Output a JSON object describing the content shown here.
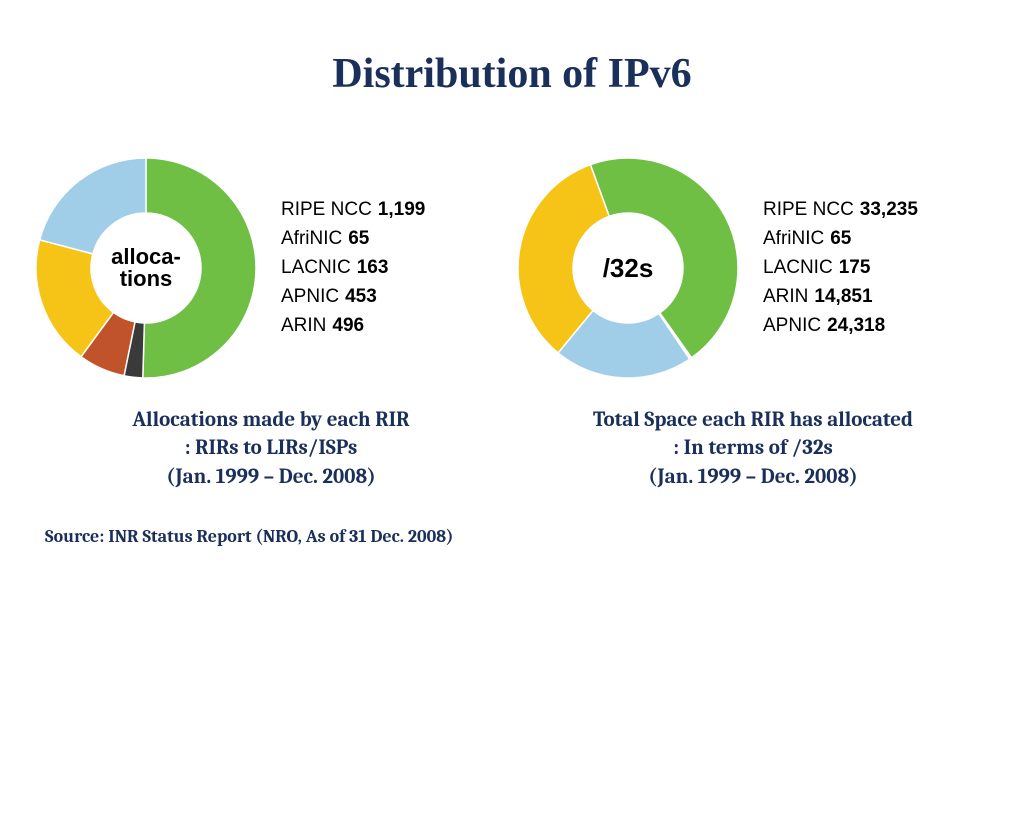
{
  "title": "Distribution of IPv6",
  "title_color": "#1a2f5a",
  "title_fontsize": 42,
  "background_color": "#ffffff",
  "left_chart": {
    "type": "donut",
    "center_label": "alloca-\ntions",
    "center_fontsize": 22,
    "inner_radius": 55,
    "outer_radius": 110,
    "start_angle_deg": 90,
    "direction": "clockwise",
    "stroke_color": "#ffffff",
    "stroke_width": 1.5,
    "slices": [
      {
        "name": "RIPE NCC",
        "value": 1199,
        "value_text": "1,199",
        "color": "#6fbf44"
      },
      {
        "name": "AfriNIC",
        "value": 65,
        "value_text": "65",
        "color": "#3a3a3a"
      },
      {
        "name": "LACNIC",
        "value": 163,
        "value_text": "163",
        "color": "#c0532a"
      },
      {
        "name": "APNIC",
        "value": 453,
        "value_text": "453",
        "color": "#f6c317"
      },
      {
        "name": "ARIN",
        "value": 496,
        "value_text": "496",
        "color": "#a0cde8"
      }
    ],
    "caption_lines": [
      "Allocations made by each RIR",
      ": RIRs to LIRs/ISPs",
      "(Jan. 1999 – Dec. 2008)"
    ]
  },
  "right_chart": {
    "type": "donut",
    "center_label": "/32s",
    "center_fontsize": 26,
    "inner_radius": 55,
    "outer_radius": 110,
    "start_angle_deg": 110,
    "direction": "clockwise",
    "stroke_color": "#ffffff",
    "stroke_width": 1.5,
    "slices": [
      {
        "name": "RIPE NCC",
        "value": 33235,
        "value_text": "33,235",
        "color": "#6fbf44"
      },
      {
        "name": "AfriNIC",
        "value": 65,
        "value_text": "65",
        "color": "#3a3a3a"
      },
      {
        "name": "LACNIC",
        "value": 175,
        "value_text": "175",
        "color": "#a0cde8"
      },
      {
        "name": "ARIN",
        "value": 14851,
        "value_text": "14,851",
        "color": "#a0cde8"
      },
      {
        "name": "APNIC",
        "value": 24318,
        "value_text": "24,318",
        "color": "#f6c317"
      }
    ],
    "caption_lines": [
      "Total Space each RIR has allocated",
      ": In terms of /32s",
      "(Jan. 1999 – Dec. 2008)"
    ]
  },
  "source": "Source: INR Status Report (NRO, As of 31 Dec. 2008)",
  "caption_color": "#1a2f5a",
  "caption_fontsize": 21,
  "legend_fontsize": 19
}
